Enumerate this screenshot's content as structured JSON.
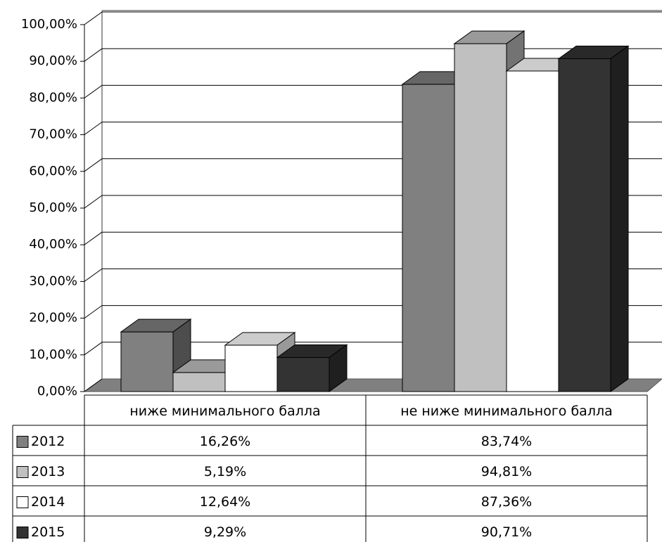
{
  "chart_data": {
    "type": "bar3d",
    "categories": [
      "ниже минимального балла",
      "не ниже минимального балла"
    ],
    "series": [
      {
        "name": "2012",
        "color": "#808080",
        "values": [
          16.26,
          83.74
        ],
        "value_labels": [
          "16,26%",
          "83,74%"
        ]
      },
      {
        "name": "2013",
        "color": "#c0c0c0",
        "values": [
          5.19,
          94.81
        ],
        "value_labels": [
          "5,19%",
          "94,81%"
        ]
      },
      {
        "name": "2014",
        "color": "#ffffff",
        "values": [
          12.64,
          87.36
        ],
        "value_labels": [
          "12,64%",
          "87,36%"
        ]
      },
      {
        "name": "2015",
        "color": "#333333",
        "values": [
          9.29,
          90.71
        ],
        "value_labels": [
          "9,29%",
          "90,71%"
        ]
      }
    ],
    "ylim": [
      0,
      100
    ],
    "yticks": [
      {
        "value": 0,
        "label": "0,00%"
      },
      {
        "value": 10,
        "label": "10,00%"
      },
      {
        "value": 20,
        "label": "20,00%"
      },
      {
        "value": 30,
        "label": "30,00%"
      },
      {
        "value": 40,
        "label": "40,00%"
      },
      {
        "value": 50,
        "label": "50,00%"
      },
      {
        "value": 60,
        "label": "60,00%"
      },
      {
        "value": 70,
        "label": "70,00%"
      },
      {
        "value": 80,
        "label": "80,00%"
      },
      {
        "value": 90,
        "label": "90,00%"
      },
      {
        "value": 100,
        "label": "100,00%"
      }
    ],
    "grid": true
  }
}
